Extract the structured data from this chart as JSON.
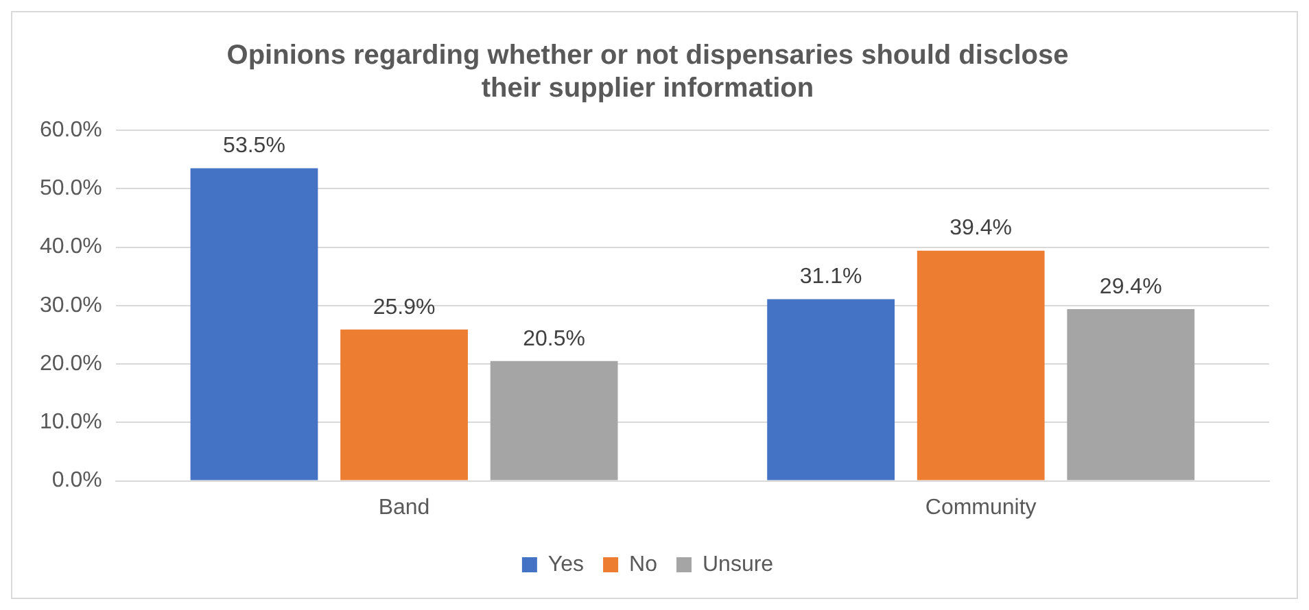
{
  "chart_data": {
    "type": "bar",
    "title": "Opinions regarding whether or not dispensaries should disclose their supplier information",
    "categories": [
      "Band",
      "Community"
    ],
    "series": [
      {
        "name": "Yes",
        "color": "#4472c4",
        "values": [
          53.5,
          31.1
        ],
        "value_labels": [
          "53.5%",
          "31.1%"
        ]
      },
      {
        "name": "No",
        "color": "#ed7d31",
        "values": [
          25.9,
          39.4
        ],
        "value_labels": [
          "25.9%",
          "39.4%"
        ]
      },
      {
        "name": "Unsure",
        "color": "#a5a5a5",
        "values": [
          20.5,
          29.4
        ],
        "value_labels": [
          "20.5%",
          "29.4%"
        ]
      }
    ],
    "ylim": [
      0,
      60
    ],
    "yticks": [
      {
        "value": 0,
        "label": "0.0%"
      },
      {
        "value": 10,
        "label": "10.0%"
      },
      {
        "value": 20,
        "label": "20.0%"
      },
      {
        "value": 30,
        "label": "30.0%"
      },
      {
        "value": 40,
        "label": "40.0%"
      },
      {
        "value": 50,
        "label": "50.0%"
      },
      {
        "value": 60,
        "label": "60.0%"
      }
    ],
    "grid": "y",
    "legend": "bottom"
  }
}
